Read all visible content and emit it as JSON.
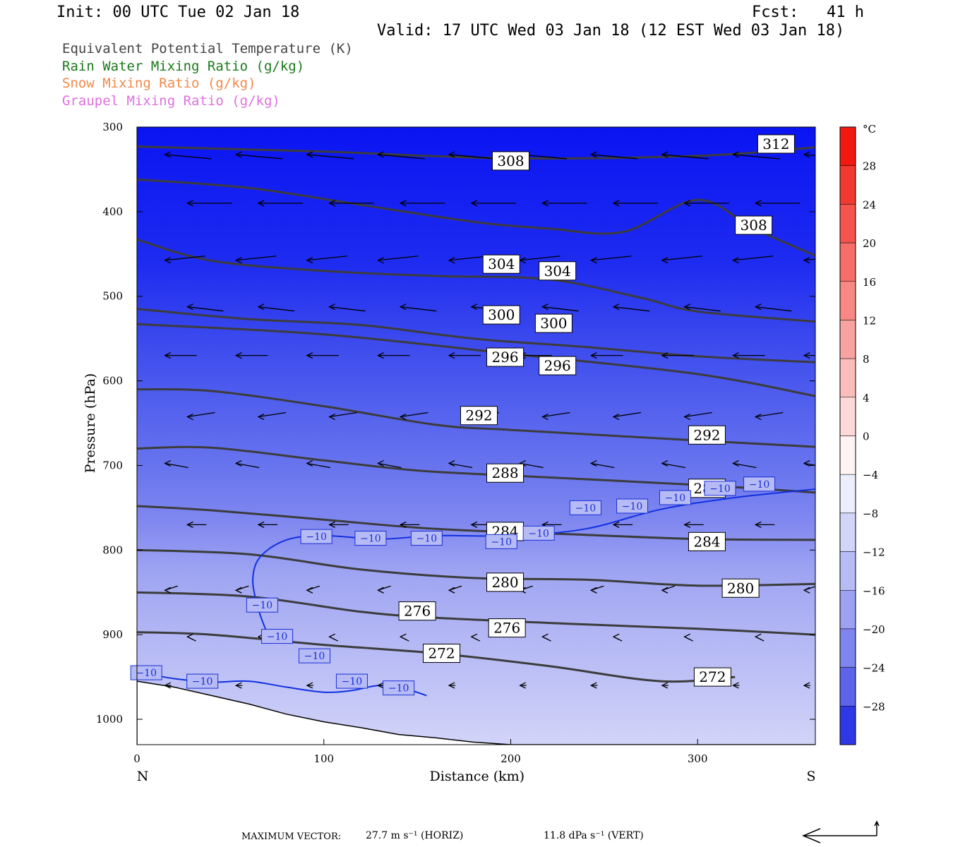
{
  "header": {
    "init": "Init: 00 UTC Tue 02 Jan 18",
    "fcst": "Fcst:   41 h",
    "valid": "Valid: 17 UTC Wed 03 Jan 18 (12 EST Wed 03 Jan 18)"
  },
  "legend": [
    {
      "label": "Equivalent Potential Temperature (K)",
      "color": "#444444"
    },
    {
      "label": "Rain Water Mixing Ratio (g/kg)",
      "color": "#1a7a1a"
    },
    {
      "label": "Snow Mixing Ratio (g/kg)",
      "color": "#f08a4b"
    },
    {
      "label": "Graupel Mixing Ratio (g/kg)",
      "color": "#e070e0"
    }
  ],
  "chart_data": {
    "type": "contour",
    "xlabel": "Distance (km)",
    "ylabel": "Pressure (hPa)",
    "xlim": [
      0,
      363
    ],
    "ylim": [
      1030,
      300
    ],
    "x_ticks": [
      0,
      100,
      200,
      300
    ],
    "y_ticks": [
      300,
      400,
      500,
      600,
      700,
      800,
      900,
      1000
    ],
    "x_end_labels": {
      "left": "N",
      "right": "S"
    },
    "theta_e_contours": [
      {
        "level": "312",
        "points": [
          [
            0,
            323
          ],
          [
            100,
            329
          ],
          [
            200,
            337
          ],
          [
            300,
            334
          ],
          [
            363,
            324
          ]
        ],
        "labels": [
          [
            342,
            320
          ]
        ]
      },
      {
        "level": "308",
        "points": [
          [
            0,
            362
          ],
          [
            60,
            372
          ],
          [
            120,
            392
          ],
          [
            180,
            412
          ],
          [
            220,
            420
          ],
          [
            260,
            424
          ],
          [
            300,
            386
          ],
          [
            330,
            420
          ],
          [
            363,
            452
          ]
        ],
        "labels": [
          [
            200,
            340
          ],
          [
            330,
            416
          ]
        ]
      },
      {
        "level": "304",
        "points": [
          [
            0,
            433
          ],
          [
            40,
            458
          ],
          [
            100,
            470
          ],
          [
            160,
            476
          ],
          [
            220,
            480
          ],
          [
            270,
            502
          ],
          [
            300,
            518
          ],
          [
            363,
            530
          ]
        ],
        "labels": [
          [
            195,
            462
          ],
          [
            225,
            470
          ]
        ]
      },
      {
        "level": "300",
        "points": [
          [
            0,
            515
          ],
          [
            60,
            527
          ],
          [
            120,
            534
          ],
          [
            180,
            550
          ],
          [
            240,
            560
          ],
          [
            300,
            571
          ],
          [
            363,
            578
          ]
        ],
        "labels": [
          [
            195,
            522
          ],
          [
            223,
            532
          ]
        ]
      },
      {
        "level": "296",
        "points": [
          [
            0,
            533
          ],
          [
            100,
            545
          ],
          [
            200,
            568
          ],
          [
            300,
            592
          ],
          [
            363,
            618
          ]
        ],
        "labels": [
          [
            197,
            572
          ],
          [
            225,
            582
          ]
        ]
      },
      {
        "level": "292",
        "points": [
          [
            0,
            610
          ],
          [
            40,
            612
          ],
          [
            100,
            630
          ],
          [
            160,
            652
          ],
          [
            200,
            658
          ],
          [
            280,
            668
          ],
          [
            363,
            678
          ]
        ],
        "labels": [
          [
            183,
            641
          ],
          [
            305,
            664
          ]
        ]
      },
      {
        "level": "288",
        "points": [
          [
            0,
            680
          ],
          [
            40,
            679
          ],
          [
            100,
            694
          ],
          [
            150,
            706
          ],
          [
            200,
            712
          ],
          [
            300,
            723
          ],
          [
            363,
            732
          ]
        ],
        "labels": [
          [
            197,
            709
          ],
          [
            305,
            727
          ]
        ]
      },
      {
        "level": "284",
        "points": [
          [
            0,
            748
          ],
          [
            40,
            753
          ],
          [
            100,
            764
          ],
          [
            160,
            775
          ],
          [
            240,
            782
          ],
          [
            300,
            787
          ],
          [
            363,
            788
          ]
        ],
        "labels": [
          [
            197,
            778
          ],
          [
            305,
            790
          ]
        ]
      },
      {
        "level": "280",
        "points": [
          [
            0,
            800
          ],
          [
            60,
            805
          ],
          [
            120,
            823
          ],
          [
            180,
            833
          ],
          [
            240,
            835
          ],
          [
            300,
            842
          ],
          [
            363,
            840
          ]
        ],
        "labels": [
          [
            197,
            838
          ],
          [
            323,
            845
          ]
        ]
      },
      {
        "level": "276",
        "points": [
          [
            0,
            850
          ],
          [
            60,
            855
          ],
          [
            120,
            873
          ],
          [
            160,
            880
          ],
          [
            230,
            887
          ],
          [
            300,
            893
          ],
          [
            363,
            900
          ]
        ],
        "labels": [
          [
            150,
            872
          ],
          [
            198,
            892
          ]
        ]
      },
      {
        "level": "272",
        "points": [
          [
            0,
            897
          ],
          [
            40,
            900
          ],
          [
            100,
            912
          ],
          [
            160,
            922
          ],
          [
            220,
            937
          ],
          [
            280,
            955
          ],
          [
            320,
            950
          ]
        ],
        "labels": [
          [
            163,
            922
          ],
          [
            308,
            950
          ]
        ]
      }
    ],
    "temperature_contours": [
      {
        "level": "−10",
        "labels": [
          [
            5,
            945
          ],
          [
            35,
            955
          ],
          [
            67,
            865
          ],
          [
            75,
            902
          ],
          [
            95,
            925
          ],
          [
            115,
            955
          ],
          [
            140,
            963
          ],
          [
            96,
            784
          ],
          [
            125,
            786
          ],
          [
            155,
            786
          ],
          [
            195,
            790
          ],
          [
            215,
            780
          ],
          [
            240,
            750
          ],
          [
            265,
            748
          ],
          [
            288,
            738
          ],
          [
            312,
            727
          ],
          [
            333,
            722
          ]
        ]
      }
    ],
    "colorbar": {
      "unit": "°C",
      "tick_labels": [
        "28",
        "24",
        "20",
        "16",
        "12",
        "8",
        "4",
        "0",
        "−4",
        "−8",
        "−12",
        "−16",
        "−20",
        "−24",
        "−28"
      ]
    }
  },
  "footer": {
    "max_vector_label": "MAXIMUM VECTOR:",
    "horiz": "27.7 m s⁻¹ (HORIZ)",
    "vert": "11.8 dPa s⁻¹ (VERT)"
  }
}
